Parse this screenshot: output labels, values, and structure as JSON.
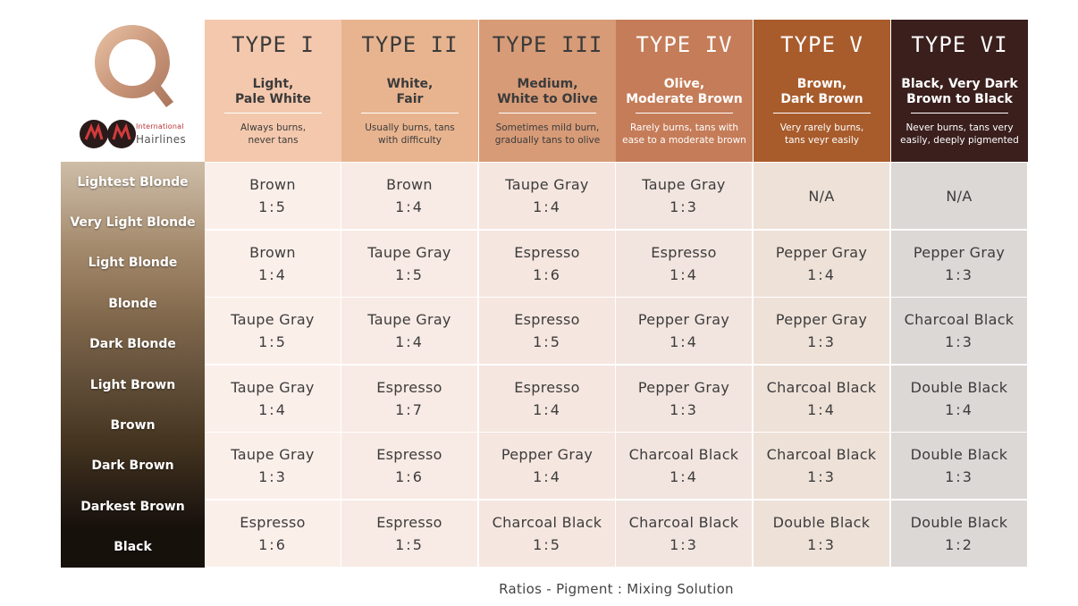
{
  "brand": {
    "top": "International",
    "bottom": "Hairlines"
  },
  "types": [
    {
      "title": "TYPE I",
      "name": "Light,\nPale White",
      "desc": "Always burns,\nnever tans",
      "bg": "#f4c8ad",
      "fg": "#3b3b3b",
      "rule": "#ffffff"
    },
    {
      "title": "TYPE II",
      "name": "White,\nFair",
      "desc": "Usually burns, tans\nwith difficulty",
      "bg": "#e8b48f",
      "fg": "#3b3b3b",
      "rule": "#ffffff"
    },
    {
      "title": "TYPE III",
      "name": "Medium,\nWhite to Olive",
      "desc": "Sometimes mild burn,\ngradually tans to olive",
      "bg": "#d79b77",
      "fg": "#3b3b3b",
      "rule": "#ffffff"
    },
    {
      "title": "TYPE IV",
      "name": "Olive,\nModerate Brown",
      "desc": "Rarely burns, tans with\nease to a moderate brown",
      "bg": "#c57c58",
      "fg": "#ffffff",
      "rule": "#ffffff"
    },
    {
      "title": "TYPE V",
      "name": "Brown,\nDark Brown",
      "desc": "Very rarely burns,\ntans veyr easily",
      "bg": "#a85c2c",
      "fg": "#ffffff",
      "rule": "#ffffff"
    },
    {
      "title": "TYPE VI",
      "name": "Black, Very Dark\nBrown to Black",
      "desc": "Never burns, tans very\neasily, deeply pigmented",
      "bg": "#3a1f1d",
      "fg": "#ffffff",
      "rule": "#ffffff"
    }
  ],
  "hair_levels": [
    {
      "label": "Lightest Blonde",
      "color": "#cdbca6"
    },
    {
      "label": "Very Light Blonde",
      "color": "#bba78e"
    },
    {
      "label": "Light Blonde",
      "color": "#a68c6f"
    },
    {
      "label": "Blonde",
      "color": "#94795c"
    },
    {
      "label": "Dark Blonde",
      "color": "#7d6549"
    },
    {
      "label": "Light Brown",
      "color": "#6a553f"
    },
    {
      "label": "Brown",
      "color": "#56452f"
    },
    {
      "label": "Dark Brown",
      "color": "#43331f"
    },
    {
      "label": "Darkest Brown",
      "color": "#2d2217"
    },
    {
      "label": "Black",
      "color": "#17110c"
    }
  ],
  "column_tints": [
    "#fbefea",
    "#f8eae4",
    "#f5e6df",
    "#f2e5df",
    "#eee1d8",
    "#dcd8d6"
  ],
  "grid": [
    [
      {
        "pigment": "Brown",
        "ratio": "1:5"
      },
      {
        "pigment": "Brown",
        "ratio": "1:4"
      },
      {
        "pigment": "Taupe Gray",
        "ratio": "1:4"
      },
      {
        "pigment": "Taupe Gray",
        "ratio": "1:3"
      },
      {
        "pigment": "N/A",
        "ratio": ""
      },
      {
        "pigment": "N/A",
        "ratio": ""
      }
    ],
    [
      {
        "pigment": "Brown",
        "ratio": "1:4"
      },
      {
        "pigment": "Taupe Gray",
        "ratio": "1:5"
      },
      {
        "pigment": "Espresso",
        "ratio": "1:6"
      },
      {
        "pigment": "Espresso",
        "ratio": "1:4"
      },
      {
        "pigment": "Pepper Gray",
        "ratio": "1:4"
      },
      {
        "pigment": "Pepper Gray",
        "ratio": "1:3"
      }
    ],
    [
      {
        "pigment": "Taupe Gray",
        "ratio": "1:5"
      },
      {
        "pigment": "Taupe Gray",
        "ratio": "1:4"
      },
      {
        "pigment": "Espresso",
        "ratio": "1:5"
      },
      {
        "pigment": "Pepper Gray",
        "ratio": "1:4"
      },
      {
        "pigment": "Pepper Gray",
        "ratio": "1:3"
      },
      {
        "pigment": "Charcoal Black",
        "ratio": "1:3"
      }
    ],
    [
      {
        "pigment": "Taupe Gray",
        "ratio": "1:4"
      },
      {
        "pigment": "Espresso",
        "ratio": "1:7"
      },
      {
        "pigment": "Espresso",
        "ratio": "1:4"
      },
      {
        "pigment": "Pepper Gray",
        "ratio": "1:3"
      },
      {
        "pigment": "Charcoal Black",
        "ratio": "1:4"
      },
      {
        "pigment": "Double Black",
        "ratio": "1:4"
      }
    ],
    [
      {
        "pigment": "Taupe Gray",
        "ratio": "1:3"
      },
      {
        "pigment": "Espresso",
        "ratio": "1:6"
      },
      {
        "pigment": "Pepper Gray",
        "ratio": "1:4"
      },
      {
        "pigment": "Charcoal Black",
        "ratio": "1:4"
      },
      {
        "pigment": "Charcoal Black",
        "ratio": "1:3"
      },
      {
        "pigment": "Double Black",
        "ratio": "1:3"
      }
    ],
    [
      {
        "pigment": "Espresso",
        "ratio": "1:6"
      },
      {
        "pigment": "Espresso",
        "ratio": "1:5"
      },
      {
        "pigment": "Charcoal Black",
        "ratio": "1:5"
      },
      {
        "pigment": "Charcoal Black",
        "ratio": "1:3"
      },
      {
        "pigment": "Double Black",
        "ratio": "1:3"
      },
      {
        "pigment": "Double Black",
        "ratio": "1:2"
      }
    ]
  ],
  "caption": "Ratios - Pigment : Mixing Solution"
}
